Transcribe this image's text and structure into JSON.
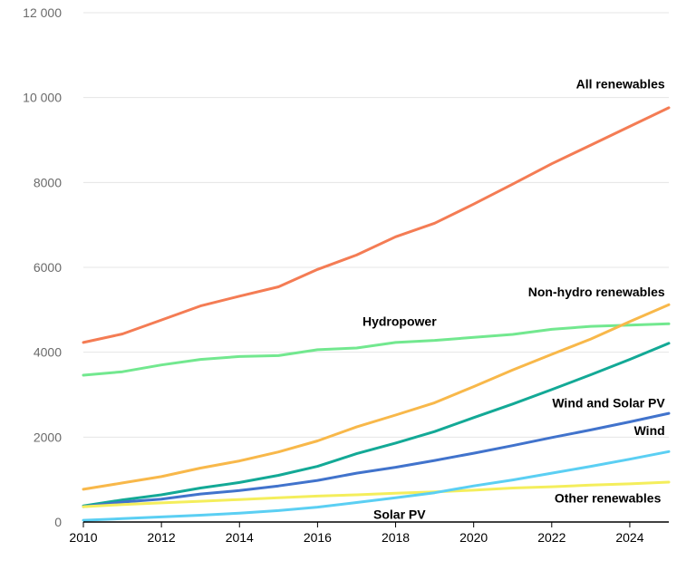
{
  "chart_data": {
    "type": "line",
    "title": "",
    "xlabel": "",
    "ylabel": "",
    "x": [
      2010,
      2011,
      2012,
      2013,
      2014,
      2015,
      2016,
      2017,
      2018,
      2019,
      2020,
      2021,
      2022,
      2023,
      2024,
      2025
    ],
    "xlim": [
      2010,
      2025
    ],
    "ylim": [
      0,
      12000
    ],
    "x_ticks": [
      "2010",
      "2012",
      "2014",
      "2016",
      "2018",
      "2020",
      "2022",
      "2024"
    ],
    "y_ticks": [
      "0",
      "2000",
      "4000",
      "6000",
      "8000",
      "10 000",
      "12 000"
    ],
    "grid": "horizontal",
    "legend": "labels on lines",
    "series": [
      {
        "name": "All renewables",
        "color": "#f47c54",
        "values": [
          4230,
          4430,
          4760,
          5090,
          5320,
          5540,
          5950,
          6290,
          6720,
          7040,
          7490,
          7960,
          8440,
          8880,
          9320,
          9760
        ]
      },
      {
        "name": "Hydropower",
        "color": "#72e88f",
        "values": [
          3460,
          3540,
          3700,
          3830,
          3900,
          3920,
          4060,
          4100,
          4230,
          4280,
          4350,
          4420,
          4540,
          4610,
          4640,
          4670
        ]
      },
      {
        "name": "Non-hydro renewables",
        "color": "#f8b84a",
        "values": [
          770,
          920,
          1070,
          1270,
          1440,
          1650,
          1910,
          2240,
          2520,
          2810,
          3190,
          3580,
          3950,
          4310,
          4720,
          5120
        ]
      },
      {
        "name": "Wind and Solar PV",
        "color": "#13a996",
        "values": [
          380,
          520,
          640,
          800,
          930,
          1100,
          1310,
          1610,
          1860,
          2130,
          2460,
          2780,
          3120,
          3470,
          3830,
          4210
        ]
      },
      {
        "name": "Wind",
        "color": "#4173cc",
        "values": [
          360,
          470,
          540,
          660,
          740,
          850,
          980,
          1150,
          1290,
          1450,
          1620,
          1800,
          1990,
          2170,
          2360,
          2560
        ]
      },
      {
        "name": "Other renewables",
        "color": "#f4ee5c",
        "values": [
          360,
          410,
          450,
          490,
          530,
          570,
          610,
          640,
          680,
          710,
          750,
          800,
          830,
          870,
          900,
          940
        ]
      },
      {
        "name": "Solar PV",
        "color": "#5bcff3",
        "values": [
          40,
          80,
          120,
          160,
          210,
          270,
          350,
          460,
          570,
          690,
          850,
          990,
          1150,
          1310,
          1480,
          1660
        ]
      }
    ]
  }
}
